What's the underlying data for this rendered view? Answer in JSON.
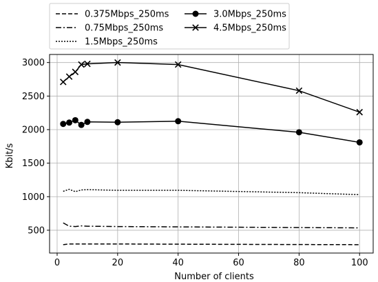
{
  "chart_data": {
    "type": "line",
    "title": "",
    "xlabel": "Number of clients",
    "ylabel": "Kbit/s",
    "xlim": [
      -2.5,
      104.5
    ],
    "ylim": [
      160,
      3120
    ],
    "xticks": [
      0,
      20,
      40,
      60,
      80,
      100
    ],
    "yticks": [
      500,
      1000,
      1500,
      2000,
      2500,
      3000
    ],
    "grid": true,
    "legend_position": "top-left, above plot",
    "series": [
      {
        "name": "0.375Mbps_250ms",
        "style": "dashed",
        "marker": "none",
        "color": "#000000",
        "x": [
          2,
          4,
          6,
          8,
          10,
          20,
          40,
          80,
          100
        ],
        "y": [
          285,
          295,
          295,
          295,
          295,
          295,
          292,
          287,
          285
        ]
      },
      {
        "name": "0.75Mbps_250ms",
        "style": "dashdot",
        "marker": "none",
        "color": "#000000",
        "x": [
          2,
          4,
          6,
          8,
          10,
          20,
          40,
          80,
          100
        ],
        "y": [
          610,
          560,
          555,
          565,
          560,
          555,
          550,
          540,
          535
        ]
      },
      {
        "name": "1.5Mbps_250ms",
        "style": "dotted",
        "marker": "none",
        "color": "#000000",
        "x": [
          2,
          4,
          6,
          8,
          10,
          20,
          40,
          80,
          100
        ],
        "y": [
          1080,
          1110,
          1075,
          1100,
          1105,
          1095,
          1095,
          1060,
          1030
        ]
      },
      {
        "name": "3.0Mbps_250ms",
        "style": "solid",
        "marker": "circle",
        "color": "#000000",
        "x": [
          2,
          4,
          6,
          8,
          10,
          20,
          40,
          80,
          100
        ],
        "y": [
          2085,
          2105,
          2140,
          2070,
          2115,
          2110,
          2125,
          1960,
          1810
        ]
      },
      {
        "name": "4.5Mbps_250ms",
        "style": "solid",
        "marker": "x",
        "color": "#000000",
        "x": [
          2,
          4,
          6,
          8,
          10,
          20,
          40,
          80,
          100
        ],
        "y": [
          2710,
          2790,
          2860,
          2970,
          2980,
          3000,
          2970,
          2580,
          2260
        ]
      }
    ]
  }
}
